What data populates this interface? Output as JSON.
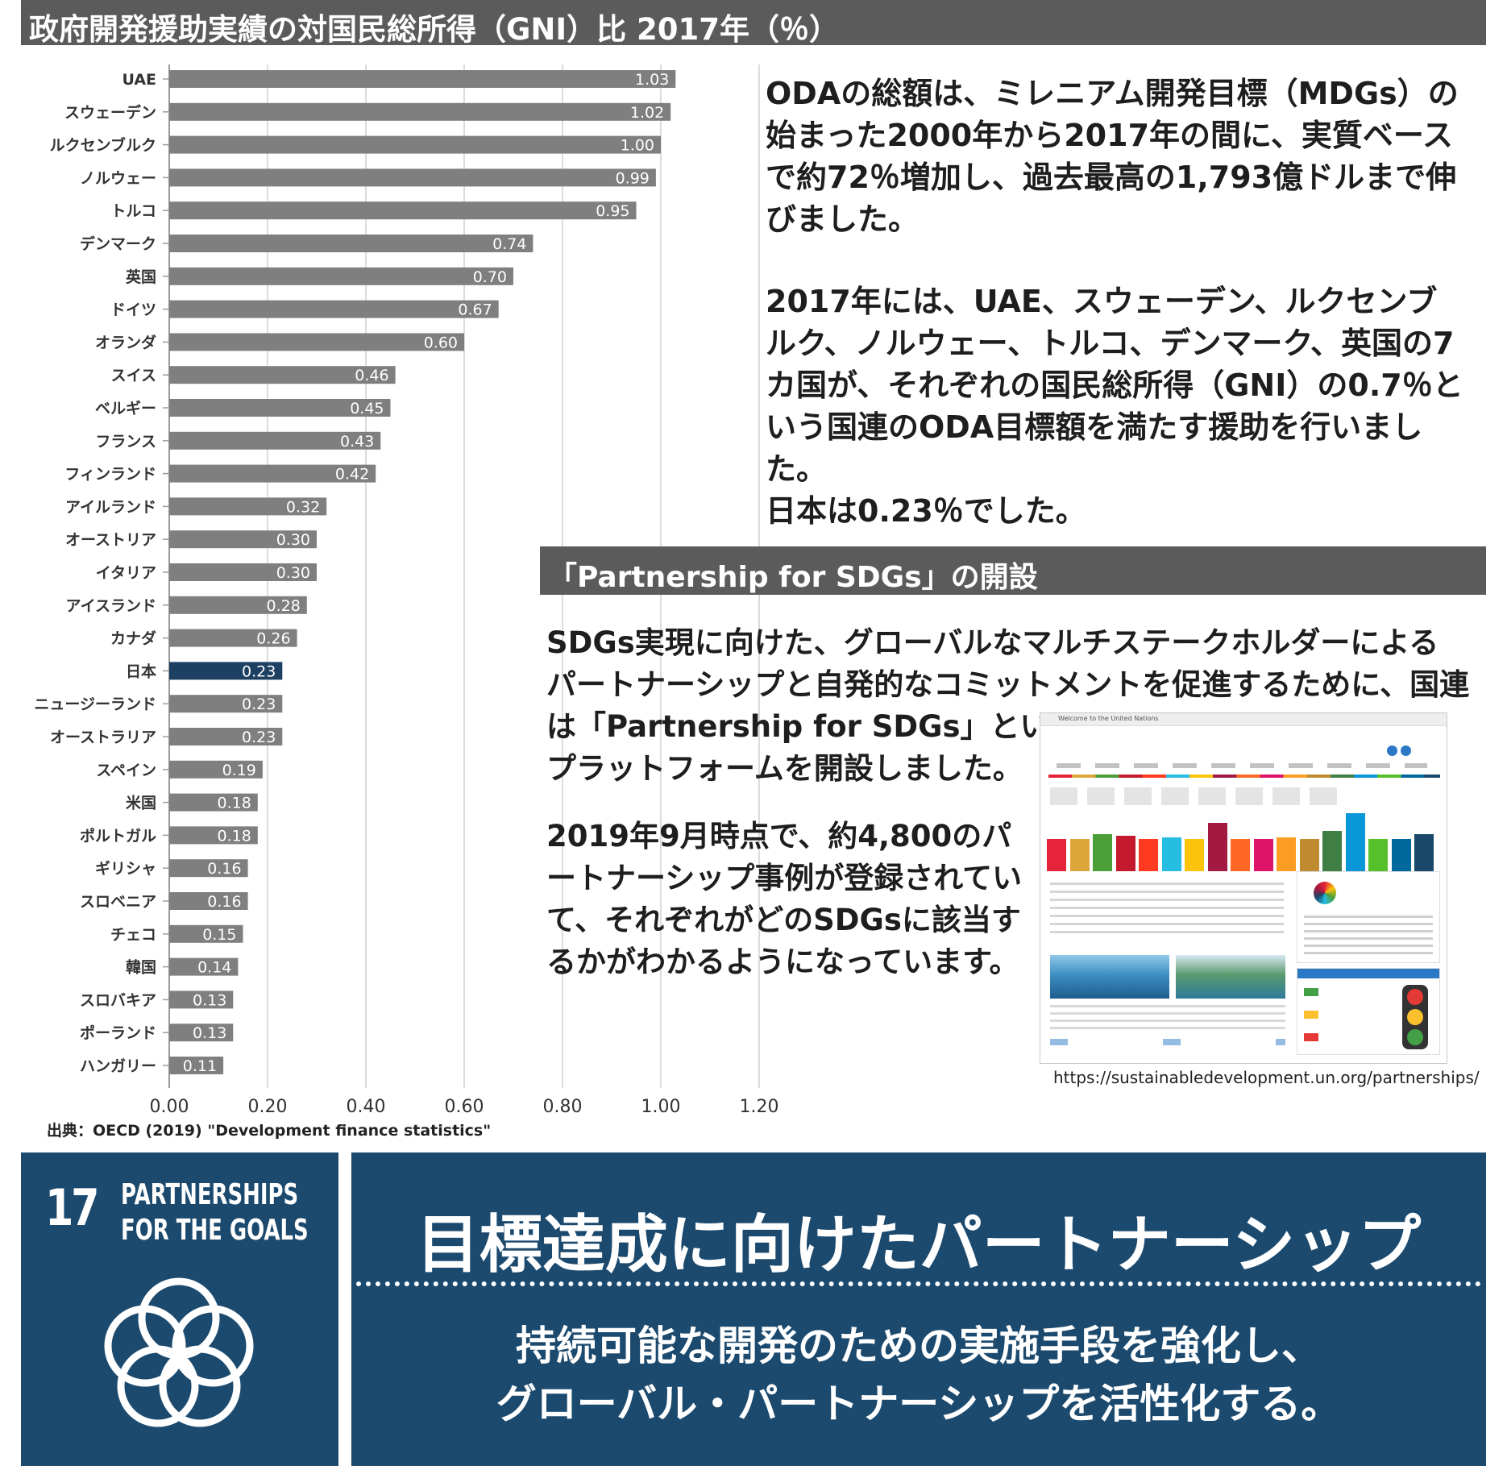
{
  "header": {
    "title": "政府開発援助実績の対国民総所得（GNI）比 2017年（％）"
  },
  "chart_data": {
    "type": "bar",
    "orientation": "horizontal",
    "categories": [
      "UAE",
      "スウェーデン",
      "ルクセンブルク",
      "ノルウェー",
      "トルコ",
      "デンマーク",
      "英国",
      "ドイツ",
      "オランダ",
      "スイス",
      "ベルギー",
      "フランス",
      "フィンランド",
      "アイルランド",
      "オーストリア",
      "イタリア",
      "アイスランド",
      "カナダ",
      "日本",
      "ニュージーランド",
      "オーストラリア",
      "スペイン",
      "米国",
      "ポルトガル",
      "ギリシャ",
      "スロベニア",
      "チェコ",
      "韓国",
      "スロバキア",
      "ポーランド",
      "ハンガリー"
    ],
    "values": [
      1.03,
      1.02,
      1.0,
      0.99,
      0.95,
      0.74,
      0.7,
      0.67,
      0.6,
      0.46,
      0.45,
      0.43,
      0.42,
      0.32,
      0.3,
      0.3,
      0.28,
      0.26,
      0.23,
      0.23,
      0.23,
      0.19,
      0.18,
      0.18,
      0.16,
      0.16,
      0.15,
      0.14,
      0.13,
      0.13,
      0.11
    ],
    "value_labels": [
      "1.03",
      "1.02",
      "1.00",
      "0.99",
      "0.95",
      "0.74",
      "0.70",
      "0.67",
      "0.60",
      "0.46",
      "0.45",
      "0.43",
      "0.42",
      "0.32",
      "0.30",
      "0.30",
      "0.28",
      "0.26",
      "0.23",
      "0.23",
      "0.23",
      "0.19",
      "0.18",
      "0.18",
      "0.16",
      "0.16",
      "0.15",
      "0.14",
      "0.13",
      "0.13",
      "0.11"
    ],
    "highlight_category": "日本",
    "xlim": [
      0,
      1.2
    ],
    "xticks": [
      "0.00",
      "0.20",
      "0.40",
      "0.60",
      "0.80",
      "1.00",
      "1.20"
    ],
    "xtick_values": [
      0,
      0.2,
      0.4,
      0.6,
      0.8,
      1.0,
      1.2
    ],
    "grid": true,
    "bar_color": "#7f7f7f",
    "highlight_color": "#1c3f62"
  },
  "source": "出典：OECD (2019) \"Development finance statistics\"",
  "text": {
    "para1": "ODAの総額は、ミレニアム開発目標（MDGs）の始まった2000年から2017年の間に、実質ベースで約72％増加し、過去最高の1,793億ドルまで伸びました。",
    "para2": "2017年には、UAE、スウェーデン、ルクセンブルク、ノルウェー、トルコ、デンマーク、英国の7カ国が、それぞれの国民総所得（GNI）の0.7％という国連のODA目標額を満たす援助を行いました。",
    "para3": "日本は0.23％でした。",
    "section_title": "「Partnership for SDGs」の開設",
    "para4_line1": "SDGs実現に向けた、グローバルなマルチステークホルダーによる",
    "para4_line2": "パートナーシップと自発的なコミットメントを促進するために、国連",
    "para4_line3": "は「Partnership for SDGs」という",
    "para4_line4": "プラットフォームを開設しました。",
    "para5": "2019年9月時点で、約4,800のパートナーシップ事例が登録されていて、それぞれがどのSDGsに該当するかがわかるようになっています。",
    "url": "https://sustainabledevelopment.un.org/partnerships/"
  },
  "goal": {
    "number": "17",
    "label_line1": "PARTNERSHIPS",
    "label_line2": "FOR THE GOALS",
    "icon": "five-rings-flower-icon",
    "color": "#1c4a6e"
  },
  "banner": {
    "headline": "目標達成に向けたパートナーシップ",
    "sub_line1": "持続可能な開発のための実施手段を強化し、",
    "sub_line2": "グローバル・パートナーシップを活性化する。"
  },
  "screenshot": {
    "header_text": "Welcome to the United Nations",
    "icon": "un-partnership-website-screenshot",
    "goal_colors": [
      "#e5243b",
      "#dda63a",
      "#4c9f38",
      "#c5192d",
      "#ff3a21",
      "#26bde2",
      "#fcc30b",
      "#a21942",
      "#fd6925",
      "#dd1367",
      "#fd9d24",
      "#bf8b2e",
      "#3f7e44",
      "#0a97d9",
      "#56c02b",
      "#00689d",
      "#19486a"
    ]
  }
}
